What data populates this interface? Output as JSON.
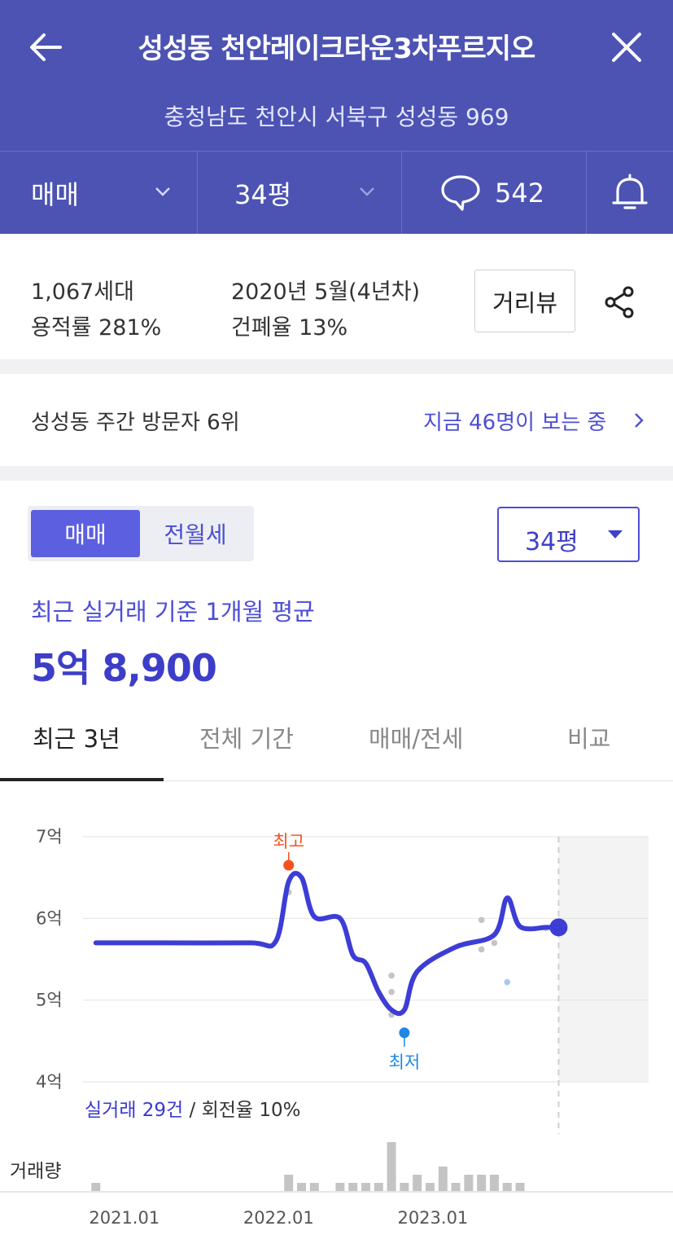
{
  "header": {
    "back_icon": "arrow-left-icon",
    "title": "성성동 천안레이크타운3차푸르지오",
    "close_icon": "close-icon",
    "address": "충청남도 천안시 서북구 성성동 969",
    "bar": {
      "trade_type": "매매",
      "size": "34평",
      "comment_count": "542",
      "comment_icon": "speech-bubble-icon",
      "alarm_icon": "bell-icon"
    },
    "colors": {
      "background": "#4c53b3"
    }
  },
  "info": {
    "households": "1,067세대",
    "built": "2020년 5월(4년차)",
    "floor_area_ratio": "용적률 281%",
    "coverage_ratio": "건폐율 13%",
    "street_view": "거리뷰",
    "share_icon": "share-icon"
  },
  "visitor": {
    "rank_text": "성성동 주간 방문자 6위",
    "viewing_text": "지금 46명이 보는 중"
  },
  "price": {
    "segment": [
      "매매",
      "전월세"
    ],
    "size_select": "34평",
    "avg_label": "최근 실거래 기준 1개월 평균",
    "avg_value": "5억 8,900"
  },
  "tabs": [
    "최근 3년",
    "전체 기간",
    "매매/전세",
    "비교"
  ],
  "stats": {
    "count": "실거래 29건",
    "sep": " / ",
    "turnover": "회전율 10%"
  },
  "volume_label": "거래량",
  "chart_data": {
    "type": "line",
    "y_unit": "억",
    "ylim": [
      4,
      7
    ],
    "y_ticks": [
      {
        "value": 7,
        "label": "7억"
      },
      {
        "value": 6,
        "label": "6억"
      },
      {
        "value": 5,
        "label": "5억"
      },
      {
        "value": 4,
        "label": "4억"
      }
    ],
    "x_ticks": [
      "2021.01",
      "2022.01",
      "2023.01"
    ],
    "xlim": [
      "2020-12",
      "2024-08"
    ],
    "series": [
      {
        "color": "#3d3dd6",
        "points": [
          [
            "2021-01",
            5.7
          ],
          [
            "2021-06",
            5.7
          ],
          [
            "2022-01",
            5.7
          ],
          [
            "2022-03",
            5.72
          ],
          [
            "2022-04",
            6.45
          ],
          [
            "2022-05",
            6.5
          ],
          [
            "2022-06",
            6.02
          ],
          [
            "2022-08",
            6.0
          ],
          [
            "2022-09",
            5.55
          ],
          [
            "2022-10",
            5.45
          ],
          [
            "2022-11",
            5.1
          ],
          [
            "2022-12",
            4.88
          ],
          [
            "2023-01",
            4.88
          ],
          [
            "2023-02",
            5.35
          ],
          [
            "2023-05",
            5.65
          ],
          [
            "2023-08",
            5.8
          ],
          [
            "2023-09",
            6.25
          ],
          [
            "2023-10",
            5.9
          ],
          [
            "2023-12",
            5.89
          ]
        ]
      }
    ],
    "transactions": [
      [
        "2022-04",
        6.32
      ],
      [
        "2022-12",
        5.3
      ],
      [
        "2022-12",
        5.1
      ],
      [
        "2022-12",
        4.82
      ],
      [
        "2023-07",
        5.98
      ],
      [
        "2023-07",
        5.62
      ],
      [
        "2023-08",
        5.7
      ],
      [
        "2023-09",
        5.22
      ],
      [
        "2023-12",
        5.88
      ]
    ],
    "annotations": [
      {
        "label": "최고",
        "date": "2022-04",
        "value": 6.65,
        "color": "#f4511e"
      },
      {
        "label": "최저",
        "date": "2023-01",
        "value": 4.6,
        "color": "#1e88e5"
      }
    ],
    "current_marker": {
      "date": "2024-01",
      "value": 5.89
    },
    "forecast_shade_from": "2024-01",
    "volume": {
      "months": [
        "2021-01",
        "2022-04",
        "2022-05",
        "2022-06",
        "2022-08",
        "2022-09",
        "2022-10",
        "2022-11",
        "2022-12",
        "2023-01",
        "2023-02",
        "2023-03",
        "2023-04",
        "2023-05",
        "2023-06",
        "2023-07",
        "2023-08",
        "2023-09",
        "2023-10"
      ],
      "counts": [
        1,
        2,
        1,
        1,
        1,
        1,
        1,
        1,
        6,
        1,
        2,
        1,
        3,
        1,
        2,
        2,
        2,
        1,
        1
      ]
    },
    "grid": true
  }
}
